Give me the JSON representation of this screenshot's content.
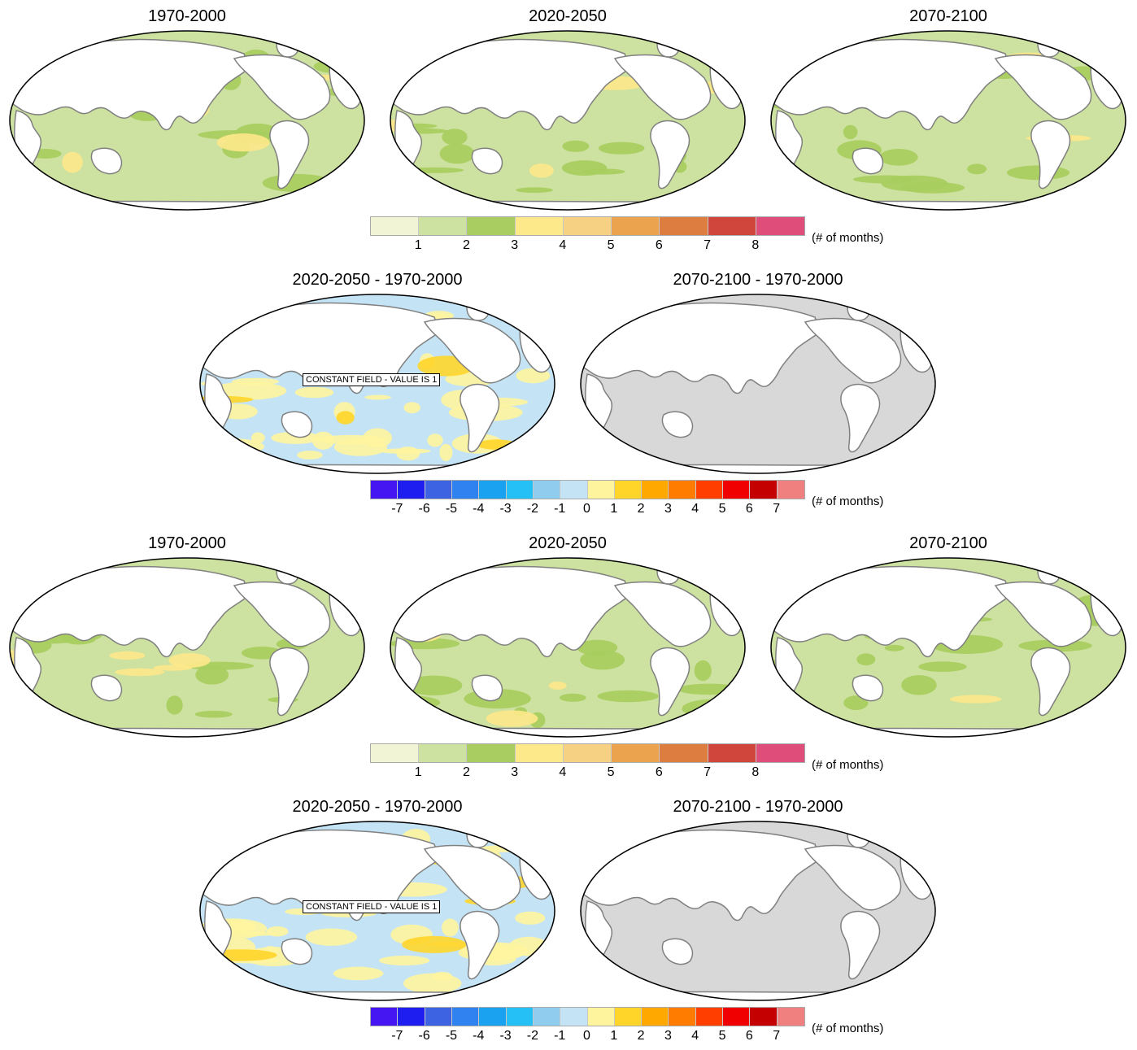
{
  "row1": {
    "titles": [
      "1970-2000",
      "2020-2050",
      "2070-2100"
    ]
  },
  "colorbar_abs_1": {
    "colors": [
      "#f1f5d6",
      "#cde2a0",
      "#a9cd60",
      "#fde88a",
      "#f6d183",
      "#eba44d",
      "#dd7d3f",
      "#d0453c",
      "#df4d7a"
    ],
    "labels": [
      "1",
      "2",
      "3",
      "4",
      "5",
      "6",
      "7",
      "8"
    ],
    "units": "(# of months)"
  },
  "row2": {
    "titles": [
      "2020-2050 - 1970-2000",
      "2070-2100 - 1970-2000"
    ],
    "constant_field_label": "CONSTANT FIELD - VALUE IS 1"
  },
  "colorbar_diff_1": {
    "colors": [
      "#4516f2",
      "#1e1ef0",
      "#3d63e2",
      "#2f82f0",
      "#1aa2f0",
      "#25c0f5",
      "#90ccee",
      "#c4e4f6",
      "#fff49e",
      "#ffd52a",
      "#ffa900",
      "#ff7c00",
      "#ff3e00",
      "#f00000",
      "#c40000",
      "#f08080"
    ],
    "labels": [
      "-7",
      "-6",
      "-5",
      "-4",
      "-3",
      "-2",
      "-1",
      "0",
      "1",
      "2",
      "3",
      "4",
      "5",
      "6",
      "7"
    ],
    "units": "(# of months)"
  },
  "row3": {
    "titles": [
      "1970-2000",
      "2020-2050",
      "2070-2100"
    ]
  },
  "colorbar_abs_2": {
    "colors": [
      "#f1f5d6",
      "#cde2a0",
      "#a9cd60",
      "#fde88a",
      "#f6d183",
      "#eba44d",
      "#dd7d3f",
      "#d0453c",
      "#df4d7a"
    ],
    "labels": [
      "1",
      "2",
      "3",
      "4",
      "5",
      "6",
      "7",
      "8"
    ],
    "units": "(# of months)"
  },
  "row4": {
    "titles": [
      "2020-2050 - 1970-2000",
      "2070-2100 - 1970-2000"
    ],
    "constant_field_label": "CONSTANT FIELD - VALUE IS 1"
  },
  "colorbar_diff_2": {
    "colors": [
      "#4516f2",
      "#1e1ef0",
      "#3d63e2",
      "#2f82f0",
      "#1aa2f0",
      "#25c0f5",
      "#90ccee",
      "#c4e4f6",
      "#fff49e",
      "#ffd52a",
      "#ffa900",
      "#ff7c00",
      "#ff3e00",
      "#f00000",
      "#c40000",
      "#f08080"
    ],
    "labels": [
      "-7",
      "-6",
      "-5",
      "-4",
      "-3",
      "-2",
      "-1",
      "0",
      "1",
      "2",
      "3",
      "4",
      "5",
      "6",
      "7"
    ],
    "units": "(# of months)"
  },
  "map_palettes": {
    "absolute": {
      "ocean_base": "#cde2a0",
      "ocean_mid": "#a9cd60",
      "ocean_hot": "#fde88a"
    },
    "diff_blue_yellow": {
      "ocean_base": "#c4e4f6",
      "ocean_mid": "#fff49e",
      "ocean_hot": "#ffd52a"
    },
    "diff_gray": {
      "ocean_base": "#d8d8d8"
    },
    "land": "#ffffff",
    "coast": "#808080"
  }
}
